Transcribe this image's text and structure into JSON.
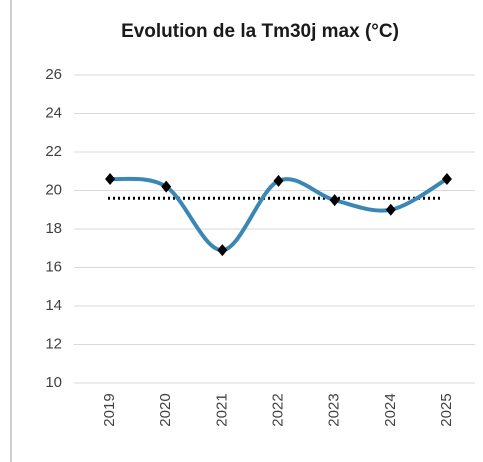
{
  "chart_data": {
    "type": "line",
    "title": "Evolution de la Tm30j max (°C)",
    "categories": [
      "2019",
      "2020",
      "2021",
      "2022",
      "2023",
      "2024",
      "2025"
    ],
    "series": [
      {
        "color": "#3b87b3",
        "values": [
          20.6,
          20.2,
          16.9,
          20.5,
          19.5,
          19.0,
          20.6
        ]
      }
    ],
    "hline": {
      "value": 19.6,
      "color": "#000000"
    },
    "marker_color": "#000000",
    "ylim": [
      10,
      26
    ],
    "yticks": [
      10,
      12,
      14,
      16,
      18,
      20,
      22,
      24,
      26
    ],
    "grid": true,
    "smooth": true
  }
}
